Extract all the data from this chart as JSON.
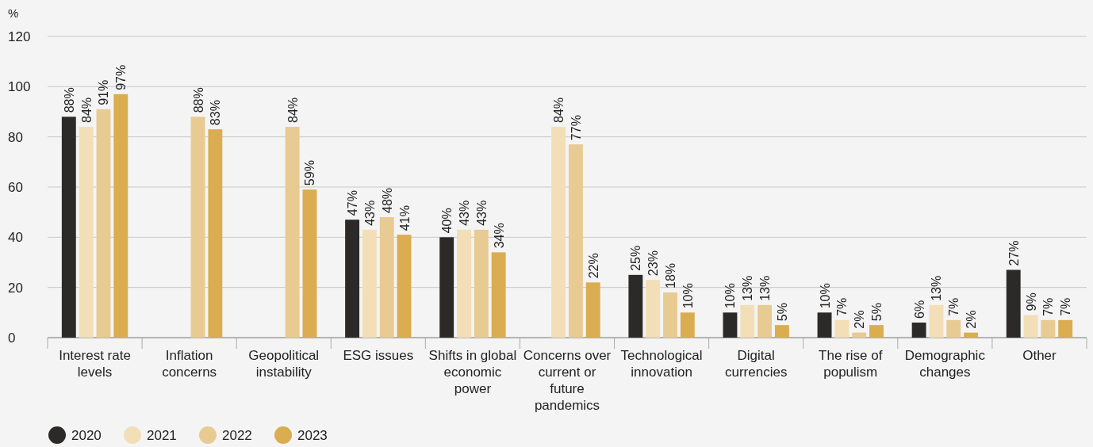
{
  "chart_data": {
    "type": "bar",
    "ylabel": "%",
    "categories": [
      "Interest rate levels",
      "Inflation concerns",
      "Geopolitical instability",
      "ESG issues",
      "Shifts in global economic power",
      "Concerns over current or future pandemics",
      "Technological innovation",
      "Digital currencies",
      "The rise of populism",
      "Demographic changes",
      "Other"
    ],
    "series": [
      {
        "name": "2020",
        "color": "#2b2a28",
        "values": [
          88,
          null,
          null,
          47,
          40,
          null,
          25,
          10,
          10,
          6,
          27
        ],
        "value_labels": [
          "88%",
          null,
          null,
          "47%",
          "40%",
          null,
          "25%",
          "10%",
          "10%",
          "6%",
          "27%"
        ]
      },
      {
        "name": "2021",
        "color": "#f2dfb8",
        "values": [
          84,
          null,
          null,
          43,
          43,
          84,
          23,
          13,
          7,
          13,
          9
        ],
        "value_labels": [
          "84%",
          null,
          null,
          "43%",
          "43%",
          "84%",
          "23%",
          "13%",
          "7%",
          "13%",
          "9%"
        ]
      },
      {
        "name": "2022",
        "color": "#e8ca93",
        "values": [
          91,
          88,
          84,
          48,
          43,
          77,
          18,
          13,
          2,
          7,
          7
        ],
        "value_labels": [
          "91%",
          "88%",
          "84%",
          "48%",
          "43%",
          "77%",
          "18%",
          "13%",
          "2%",
          "7%",
          "7%"
        ]
      },
      {
        "name": "2023",
        "color": "#d9ad50",
        "values": [
          97,
          83,
          59,
          41,
          34,
          22,
          10,
          5,
          5,
          2,
          7
        ],
        "value_labels": [
          "97%",
          "83%",
          "59%",
          "41%",
          "34%",
          "22%",
          "10%",
          "5%",
          "5%",
          "2%",
          "7%"
        ]
      }
    ],
    "ylim": [
      0,
      120
    ],
    "yticks": [
      0,
      20,
      40,
      60,
      80,
      100,
      120
    ],
    "grid": "y",
    "legend": "bottom left"
  }
}
